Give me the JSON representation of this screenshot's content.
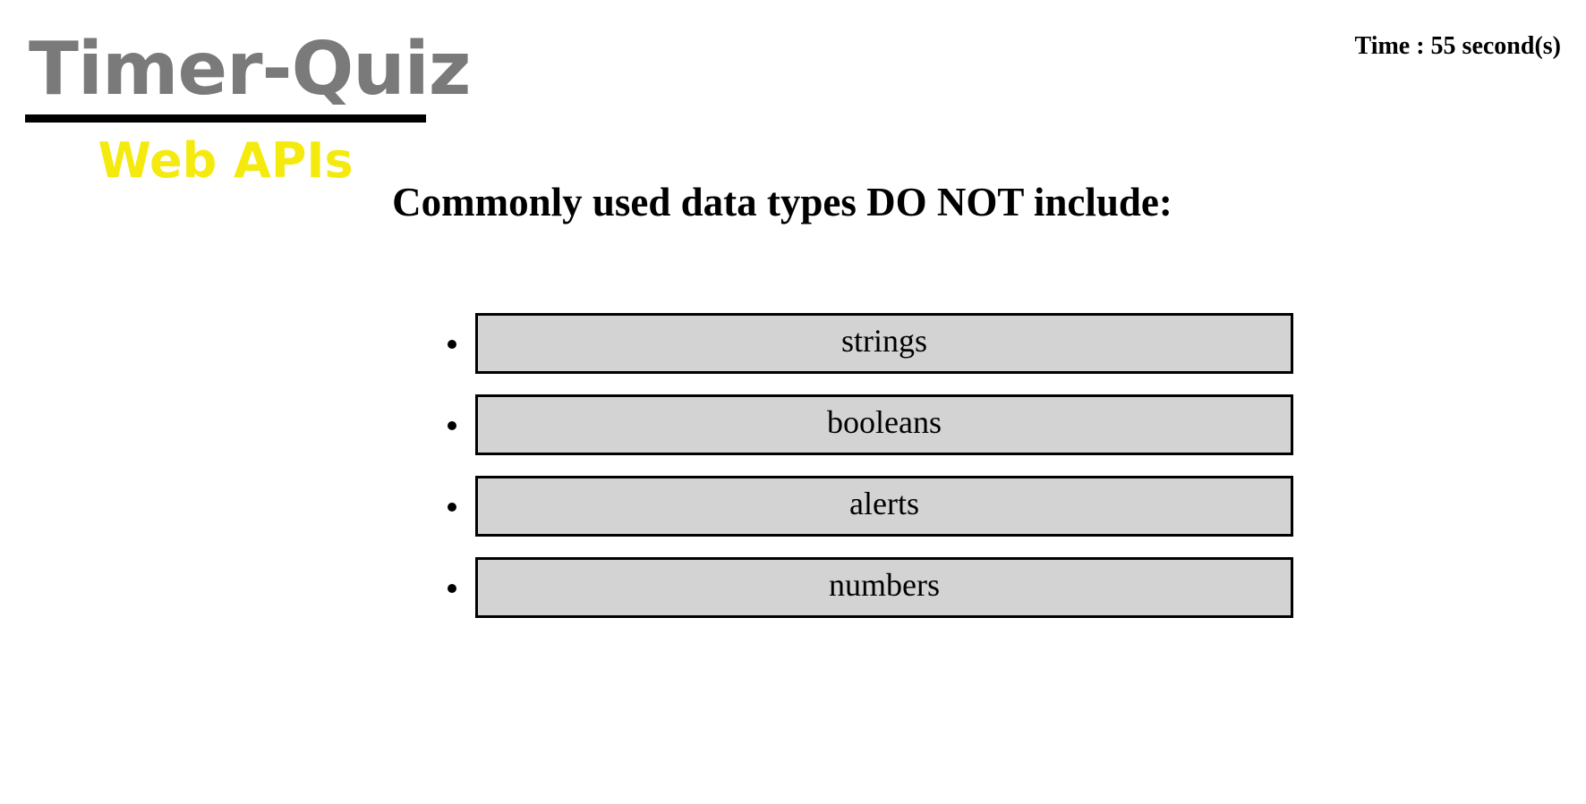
{
  "brand": {
    "title": "Timer-Quiz",
    "subtitle": "Web APIs",
    "title_color": "#7a7a7a",
    "subtitle_color": "#f5ea0e"
  },
  "timer": {
    "text": "Time : 55 second(s)"
  },
  "quiz": {
    "question": "Commonly used data types DO NOT include:",
    "answers": [
      {
        "label": "strings"
      },
      {
        "label": "booleans"
      },
      {
        "label": "alerts"
      },
      {
        "label": "numbers"
      }
    ],
    "button_color": "#d3d3d3"
  }
}
